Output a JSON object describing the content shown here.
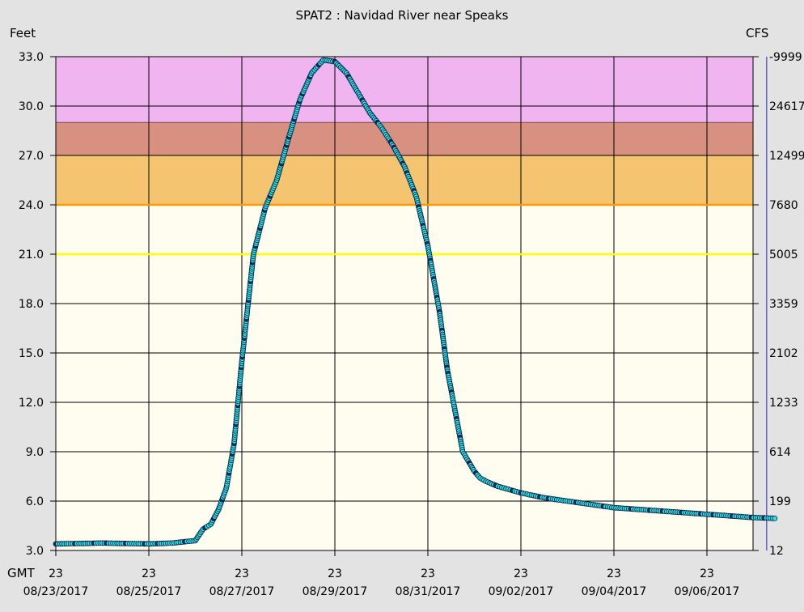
{
  "chart_data": {
    "type": "scatter",
    "title": "SPAT2  :  Navidad River near Speaks",
    "left_axis_label": "Feet",
    "right_axis_label": "CFS",
    "x_tick_top_label": "23",
    "x_prefix_label": "GMT",
    "x_dates": [
      "08/23/2017",
      "08/25/2017",
      "08/27/2017",
      "08/29/2017",
      "08/31/2017",
      "09/02/2017",
      "09/04/2017",
      "09/06/2017"
    ],
    "x_range": [
      "2017-08-23T00:00",
      "2017-09-07T11:00"
    ],
    "y_range": [
      3.0,
      33.0
    ],
    "y_ticks": [
      "33.0",
      "30.0",
      "27.0",
      "24.0",
      "21.0",
      "18.0",
      "15.0",
      "12.0",
      "9.0",
      "6.0",
      "3.0"
    ],
    "y_tick_values": [
      33,
      30,
      27,
      24,
      21,
      18,
      15,
      12,
      9,
      6,
      3
    ],
    "cfs_ticks": [
      "-9999",
      "24617",
      "12499",
      "7680",
      "5005",
      "3359",
      "2102",
      "1233",
      "614",
      "199",
      "12"
    ],
    "flood_categories": [
      {
        "name": "major",
        "from": 29,
        "to": 33,
        "color": "#f0b4f0"
      },
      {
        "name": "moderate",
        "from": 27,
        "to": 29,
        "color": "#d89080"
      },
      {
        "name": "minor",
        "from": 24,
        "to": 27,
        "color": "#f4c470"
      },
      {
        "name": "normal",
        "from": 3,
        "to": 24,
        "color": "#fffdf0"
      }
    ],
    "threshold_lines": [
      {
        "name": "flood-stage",
        "value": 24,
        "color": "#ff9900"
      },
      {
        "name": "action-stage",
        "value": 21,
        "color": "#ffff00"
      }
    ],
    "series": [
      {
        "point_color": "#22e6e6",
        "x": [
          "2017-08-23T00:00",
          "2017-08-24T00:00",
          "2017-08-25T00:00",
          "2017-08-25T12:00",
          "2017-08-26T00:00",
          "2017-08-26T04:00",
          "2017-08-26T08:00",
          "2017-08-26T12:00",
          "2017-08-26T16:00",
          "2017-08-26T20:00",
          "2017-08-27T00:00",
          "2017-08-27T06:00",
          "2017-08-27T12:00",
          "2017-08-27T18:00",
          "2017-08-28T00:00",
          "2017-08-28T06:00",
          "2017-08-28T12:00",
          "2017-08-28T18:00",
          "2017-08-29T00:00",
          "2017-08-29T06:00",
          "2017-08-29T12:00",
          "2017-08-29T18:00",
          "2017-08-30T00:00",
          "2017-08-30T06:00",
          "2017-08-30T12:00",
          "2017-08-30T18:00",
          "2017-08-31T00:00",
          "2017-08-31T06:00",
          "2017-08-31T10:00",
          "2017-08-31T14:00",
          "2017-08-31T18:00",
          "2017-08-31T22:00",
          "2017-09-01T00:00",
          "2017-09-01T03:00",
          "2017-09-01T06:00",
          "2017-09-01T12:00",
          "2017-09-02T00:00",
          "2017-09-02T12:00",
          "2017-09-03T00:00",
          "2017-09-03T12:00",
          "2017-09-04T00:00",
          "2017-09-05T00:00",
          "2017-09-06T00:00",
          "2017-09-07T00:00",
          "2017-09-07T11:00"
        ],
        "y": [
          3.4,
          3.45,
          3.4,
          3.45,
          3.6,
          4.3,
          4.6,
          5.5,
          6.8,
          9.5,
          14.5,
          21.0,
          23.8,
          25.5,
          28.0,
          30.4,
          32.0,
          32.8,
          32.7,
          32.0,
          30.8,
          29.6,
          28.7,
          27.6,
          26.3,
          24.5,
          21.5,
          17.5,
          14.0,
          11.5,
          9.0,
          8.2,
          7.8,
          7.4,
          7.2,
          6.9,
          6.5,
          6.2,
          6.0,
          5.8,
          5.6,
          5.4,
          5.2,
          5.0,
          4.95
        ]
      }
    ]
  }
}
